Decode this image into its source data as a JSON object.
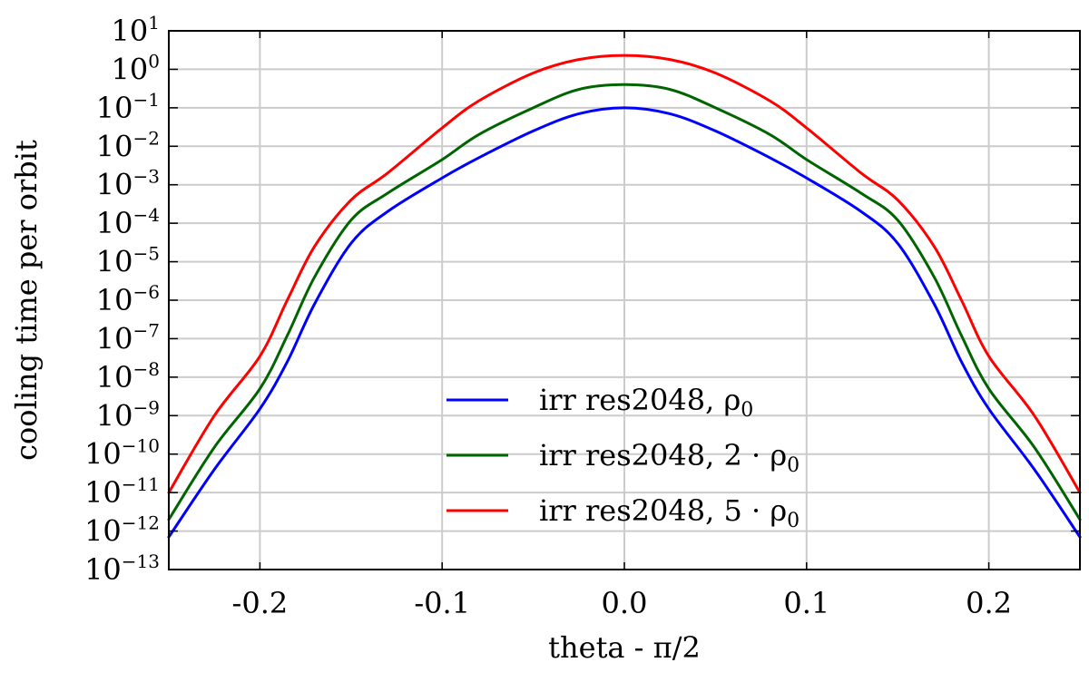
{
  "chart_data": {
    "type": "line",
    "title": "",
    "xlabel": "theta - π/2",
    "ylabel": "cooling time per orbit",
    "xlim": [
      -0.25,
      0.25
    ],
    "ylim": [
      1e-13,
      10
    ],
    "yscale": "log",
    "grid": true,
    "legend_position": "lower-center",
    "x_ticks": [
      -0.2,
      -0.1,
      0.0,
      0.1,
      0.2
    ],
    "x_tick_labels": [
      "-0.2",
      "-0.1",
      "0.0",
      "0.1",
      "0.2"
    ],
    "y_tick_base": "10",
    "y_tick_exponents": [
      "1",
      "0",
      "−1",
      "−2",
      "−3",
      "−4",
      "−5",
      "−6",
      "−7",
      "−8",
      "−9",
      "−10",
      "−11",
      "−12",
      "−13"
    ],
    "x": [
      -0.25,
      -0.225,
      -0.2,
      -0.185,
      -0.17,
      -0.15,
      -0.13,
      -0.1,
      -0.08,
      -0.05,
      -0.025,
      0.0,
      0.025,
      0.05,
      0.08,
      0.1,
      0.13,
      0.15,
      0.17,
      0.185,
      0.2,
      0.225,
      0.25
    ],
    "series": [
      {
        "name": "irr res2048, ρ",
        "name_sub": "0",
        "color": "#0000ff",
        "values": [
          7e-13,
          4e-11,
          1.5e-09,
          2.5e-08,
          8e-07,
          3e-05,
          0.0002,
          0.0015,
          0.005,
          0.025,
          0.07,
          0.1,
          0.07,
          0.025,
          0.005,
          0.0015,
          0.0002,
          3e-05,
          8e-07,
          2.5e-08,
          1.5e-09,
          4e-11,
          7e-13
        ]
      },
      {
        "name": "irr res2048, 2 · ρ",
        "name_sub": "0",
        "color": "#006400",
        "values": [
          2e-12,
          1.5e-10,
          5e-09,
          1.2e-07,
          4e-06,
          0.00012,
          0.0006,
          0.0045,
          0.02,
          0.1,
          0.3,
          0.4,
          0.3,
          0.1,
          0.02,
          0.0045,
          0.0006,
          0.00012,
          4e-06,
          1.2e-07,
          5e-09,
          1.5e-10,
          2e-12
        ]
      },
      {
        "name": "irr res2048, 5 · ρ",
        "name_sub": "0",
        "color": "#ff0000",
        "values": [
          1e-11,
          1e-09,
          3.5e-08,
          1e-06,
          2.5e-05,
          0.0004,
          0.002,
          0.03,
          0.15,
          0.8,
          1.8,
          2.3,
          1.8,
          0.8,
          0.15,
          0.03,
          0.002,
          0.0004,
          2.5e-05,
          1e-06,
          3.5e-08,
          1e-09,
          1e-11
        ]
      }
    ]
  }
}
